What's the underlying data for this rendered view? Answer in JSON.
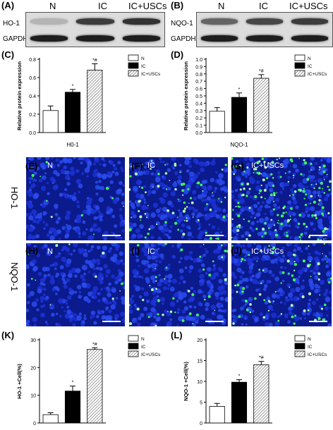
{
  "blots": [
    {
      "panel_label": "(A)",
      "columns": [
        "N",
        "IC",
        "IC+USCs"
      ],
      "rows": [
        "HO-1",
        "GAPDH"
      ],
      "intensity": [
        [
          0.15,
          0.75,
          0.8
        ],
        [
          0.9,
          0.9,
          0.9
        ]
      ]
    },
    {
      "panel_label": "(B)",
      "columns": [
        "N",
        "IC",
        "IC+USCs"
      ],
      "rows": [
        "NQO-1",
        "GAPDH"
      ],
      "intensity": [
        [
          0.55,
          0.7,
          0.75
        ],
        [
          0.9,
          0.9,
          0.9
        ]
      ]
    }
  ],
  "micro": {
    "rows": [
      "HO-1",
      "NQO-1"
    ],
    "panels": [
      {
        "label": "(E)",
        "text": "N",
        "green": 0.05
      },
      {
        "label": "(F)",
        "text": "IC",
        "green": 0.35
      },
      {
        "label": "(G)",
        "text": "IC+USCs",
        "green": 0.75
      },
      {
        "label": "(H)",
        "text": "N",
        "green": 0.05
      },
      {
        "label": "(I)",
        "text": "IC",
        "green": 0.2
      },
      {
        "label": "(J)",
        "text": "IC+USCs",
        "green": 0.35
      }
    ]
  },
  "legend_labels": [
    "N",
    "IC",
    "IC+USCs"
  ],
  "chart_data": [
    {
      "panel_label": "(C)",
      "type": "bar",
      "categories": [
        "N",
        "IC",
        "IC+USCs"
      ],
      "values": [
        0.24,
        0.44,
        0.68
      ],
      "errors": [
        0.05,
        0.03,
        0.07
      ],
      "annotations": [
        "",
        "*",
        "*#"
      ],
      "ylabel": "Relative protein expression",
      "xlabel": "H0-1",
      "ylim": [
        0,
        0.8
      ],
      "yticks": [
        0.0,
        0.2,
        0.4,
        0.6,
        0.8
      ],
      "tick_labels": [
        "0.0",
        "0.2",
        "0.4",
        "0.6",
        "0.8"
      ]
    },
    {
      "panel_label": "(D)",
      "type": "bar",
      "categories": [
        "N",
        "IC",
        "IC+USCs"
      ],
      "values": [
        0.29,
        0.48,
        0.74
      ],
      "errors": [
        0.05,
        0.06,
        0.05
      ],
      "annotations": [
        "",
        "*",
        "*#"
      ],
      "ylabel": "Relative protein expression",
      "xlabel": "NQO-1",
      "ylim": [
        0,
        1.0
      ],
      "yticks": [
        0.0,
        0.1,
        0.2,
        0.3,
        0.4,
        0.5,
        0.6,
        0.7,
        0.8,
        0.9,
        1.0
      ],
      "tick_labels": [
        "0.0",
        "0.1",
        "0.2",
        "0.3",
        "0.4",
        "0.5",
        "0.6",
        "0.7",
        "0.8",
        "0.9",
        "1.0"
      ]
    },
    {
      "panel_label": "(K)",
      "type": "bar",
      "categories": [
        "N",
        "IC",
        "IC+USCs"
      ],
      "values": [
        3,
        11.5,
        26.5
      ],
      "errors": [
        0.7,
        1.8,
        0.6
      ],
      "annotations": [
        "",
        "*",
        "*#"
      ],
      "ylabel": "HO-1 +Cell(%)",
      "xlabel": "",
      "ylim": [
        0,
        30
      ],
      "yticks": [
        0,
        10,
        20,
        30
      ],
      "tick_labels": [
        "0",
        "10",
        "20",
        "30"
      ]
    },
    {
      "panel_label": "(L)",
      "type": "bar",
      "categories": [
        "N",
        "IC",
        "IC+USCs"
      ],
      "values": [
        4,
        9.8,
        14
      ],
      "errors": [
        0.7,
        0.6,
        0.8
      ],
      "annotations": [
        "",
        "*",
        "*#"
      ],
      "ylabel": "NQO-1 +Cell(%)",
      "xlabel": "",
      "ylim": [
        0,
        20
      ],
      "yticks": [
        0,
        5,
        10,
        15,
        20
      ],
      "tick_labels": [
        "0",
        "5",
        "10",
        "15",
        "20"
      ]
    }
  ]
}
